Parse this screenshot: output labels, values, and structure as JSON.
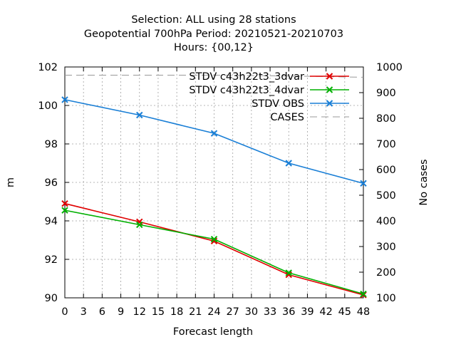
{
  "chart_data": {
    "type": "line",
    "title_lines": [
      "Selection: ALL using    28 stations",
      "Geopotential 700hPa   Period: 20210521-20210703",
      "Hours: {00,12}"
    ],
    "xlabel": "Forecast length",
    "ylabel": "m",
    "y2label": "No cases",
    "xlim": [
      0,
      48
    ],
    "ylim": [
      90,
      102
    ],
    "y2lim": [
      100,
      1000
    ],
    "xticks": [
      "0",
      "3",
      "6",
      "9",
      "12",
      "15",
      "18",
      "21",
      "24",
      "27",
      "30",
      "33",
      "36",
      "39",
      "42",
      "45",
      "48"
    ],
    "yticks": [
      "90",
      "92",
      "94",
      "96",
      "98",
      "100",
      "102"
    ],
    "y2ticks": [
      "100",
      "200",
      "300",
      "400",
      "500",
      "600",
      "700",
      "800",
      "900",
      "1000"
    ],
    "grid": true,
    "legend_position": "top-right",
    "x": [
      0,
      12,
      24,
      36,
      48
    ],
    "series": [
      {
        "name": "STDV c43h22t3_3dvar",
        "color": "#e00000",
        "axis": "y1",
        "marker": "x",
        "values": [
          94.9,
          93.95,
          92.95,
          91.2,
          90.15
        ]
      },
      {
        "name": "STDV c43h22t3_4dvar",
        "color": "#00b000",
        "axis": "y1",
        "marker": "x",
        "values": [
          94.55,
          93.8,
          93.05,
          91.3,
          90.2
        ]
      },
      {
        "name": "STDV OBS",
        "color": "#1a7fd6",
        "axis": "y1",
        "marker": "x",
        "values": [
          100.3,
          99.5,
          98.55,
          97.0,
          95.95
        ]
      },
      {
        "name": "CASES",
        "color": "#999999",
        "axis": "y2",
        "marker": "none",
        "dash": true,
        "values": [
          968,
          968,
          968,
          965,
          960
        ]
      }
    ]
  }
}
